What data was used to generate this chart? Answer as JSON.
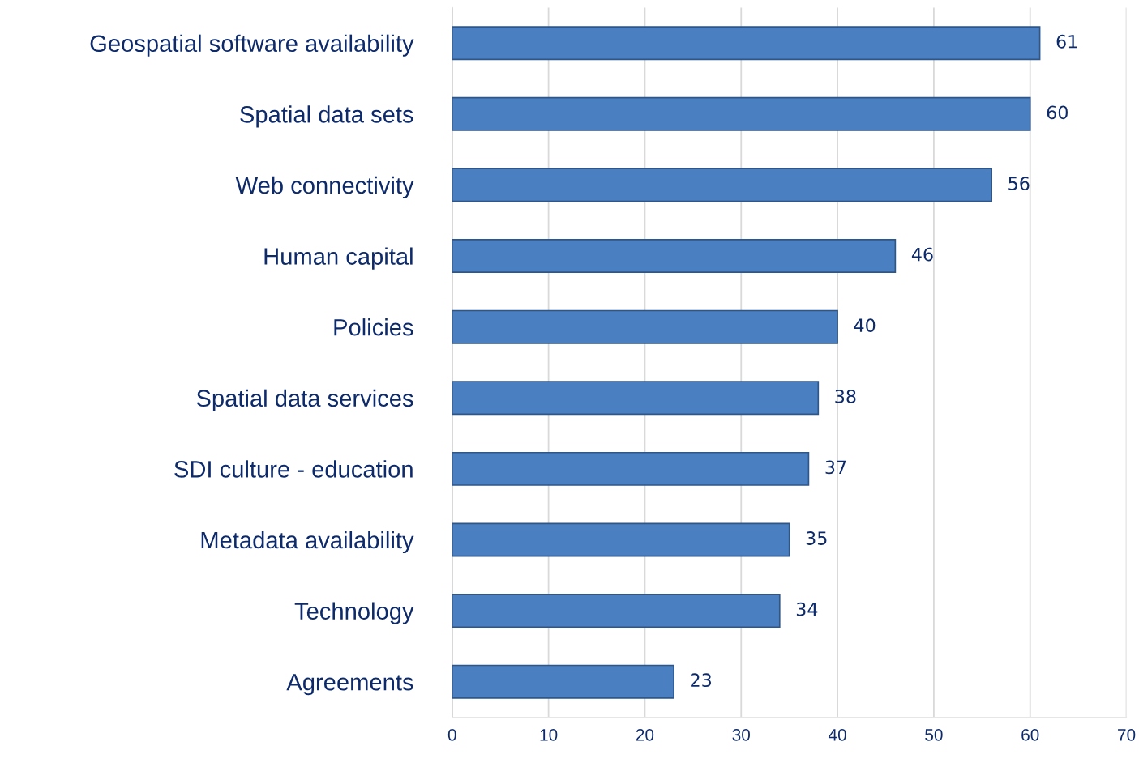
{
  "chart_data": {
    "type": "bar",
    "orientation": "horizontal",
    "categories": [
      "Geospatial software availability",
      "Spatial data sets",
      "Web connectivity",
      "Human capital",
      "Policies",
      "Spatial data services",
      "SDI culture - education",
      "Metadata availability",
      "Technology",
      "Agreements"
    ],
    "values": [
      61,
      60,
      56,
      46,
      40,
      38,
      37,
      35,
      34,
      23
    ],
    "color": "#4a7fc1",
    "xlim": [
      0,
      70
    ],
    "xticks": [
      0,
      10,
      20,
      30,
      40,
      50,
      60,
      70
    ],
    "grid": "x",
    "data_labels": true,
    "legend": false
  }
}
